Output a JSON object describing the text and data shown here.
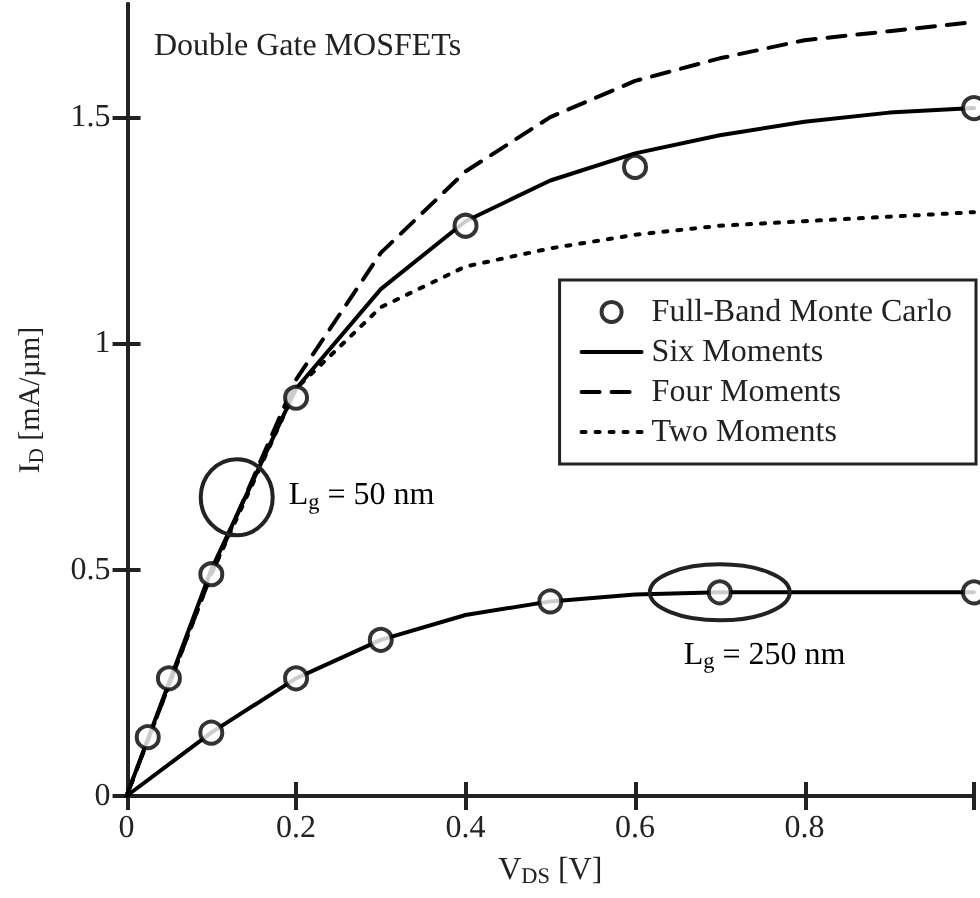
{
  "chart_data": {
    "type": "line",
    "title": "Double Gate MOSFETs",
    "xlabel": "V$_{DS}$ [V]",
    "ylabel": "I$_{D}$ [mA/µm]",
    "xlim": [
      0,
      1
    ],
    "ylim": [
      0,
      1.75
    ],
    "xticks": [
      0,
      0.2,
      0.4,
      0.6,
      0.8,
      {
        "value": 1,
        "label": null
      }
    ],
    "yticks": [
      0,
      0.5,
      1,
      1.5
    ],
    "grid": false,
    "legend": "right",
    "marker": "none",
    "annotations": [
      {
        "text": "L$_{g}$ = 50 nm",
        "x": 0.13,
        "y": 0.66
      },
      {
        "text": "L$_{g}$ = 250 nm",
        "x": 0.7,
        "y": 0.45
      }
    ],
    "series": [
      {
        "name": "Full-Band Monte Carlo",
        "type": "scatter",
        "marker": "circle",
        "color": "#000000",
        "x": [
          0.025,
          0.05,
          0.1,
          0.2,
          0.4,
          0.6,
          1.0,
          0.1,
          0.2,
          0.3,
          0.5,
          0.7,
          1.0
        ],
        "values": [
          0.13,
          0.26,
          0.49,
          0.88,
          1.26,
          1.39,
          1.52,
          0.14,
          0.26,
          0.345,
          0.43,
          0.45,
          0.45
        ]
      },
      {
        "name": "Six Moments",
        "line_style": "solid",
        "color": "#000000",
        "x": [
          0,
          0.1,
          0.2,
          0.3,
          0.4,
          0.5,
          0.6,
          0.7,
          0.8,
          0.9,
          1.0
        ],
        "values": [
          0,
          0.5,
          0.9,
          1.12,
          1.27,
          1.36,
          1.42,
          1.46,
          1.49,
          1.51,
          1.52
        ]
      },
      {
        "name": "Four Moments",
        "line_style": "dashed",
        "color": "#000000",
        "x": [
          0,
          0.1,
          0.2,
          0.3,
          0.4,
          0.5,
          0.6,
          0.7,
          0.8,
          0.9,
          1.0
        ],
        "values": [
          0,
          0.49,
          0.92,
          1.2,
          1.38,
          1.5,
          1.58,
          1.63,
          1.67,
          1.69,
          1.71
        ]
      },
      {
        "name": "Two Moments",
        "line_style": "dotted",
        "color": "#000000",
        "x": [
          0,
          0.1,
          0.2,
          0.3,
          0.4,
          0.5,
          0.6,
          0.7,
          0.8,
          0.9,
          1.0
        ],
        "values": [
          0,
          0.49,
          0.9,
          1.08,
          1.17,
          1.21,
          1.24,
          1.26,
          1.27,
          1.28,
          1.29
        ]
      },
      {
        "line_style": "solid",
        "color": "#000000",
        "x": [
          0,
          0.1,
          0.2,
          0.3,
          0.4,
          0.5,
          0.6,
          0.7,
          0.8,
          0.9,
          1.0
        ],
        "values": [
          0,
          0.14,
          0.26,
          0.345,
          0.4,
          0.43,
          0.445,
          0.45,
          0.45,
          0.45,
          0.45
        ]
      }
    ]
  }
}
